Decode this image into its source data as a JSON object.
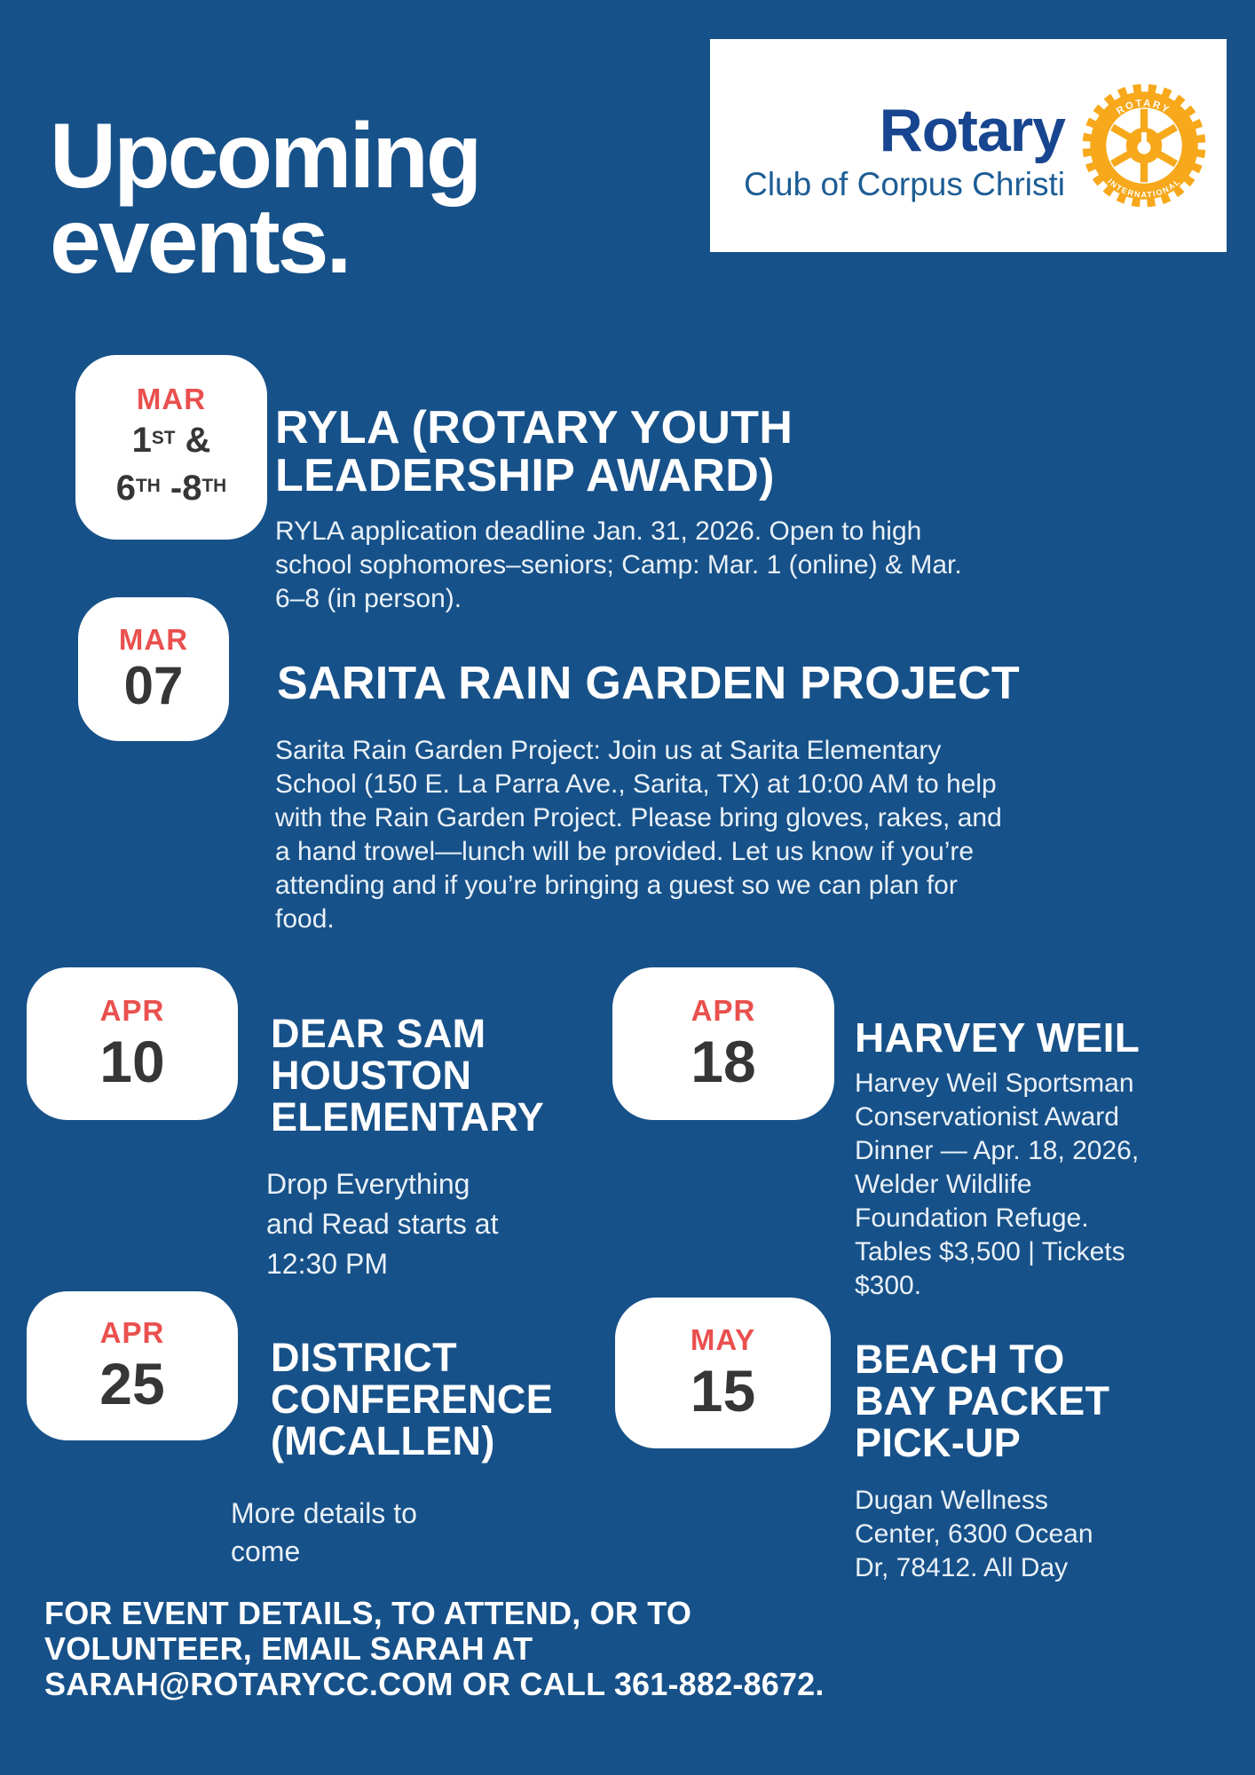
{
  "colors": {
    "background": "#175189",
    "accent_red": "#E9504E",
    "date_text": "#363636",
    "heading_white": "#FFFFFF",
    "body_text": "#E9F1F8",
    "gold": "#F7A81B",
    "brand_blue": "#17458F",
    "subtitle_blue": "#1C5C94",
    "card_bg": "#FFFFFF"
  },
  "page": {
    "title_lines": [
      "Upcoming",
      "events."
    ]
  },
  "logo": {
    "brand": "Rotary",
    "subtitle": "Club of Corpus Christi",
    "wheel_text_top": "ROTARY",
    "wheel_text_bottom": "INTERNATIONAL"
  },
  "events": [
    {
      "month": "MAR",
      "day_lines": [
        "1^ST^ &",
        "6^TH^ -8^TH^"
      ],
      "title_lines": [
        "RYLA (ROTARY YOUTH",
        "LEADERSHIP AWARD)"
      ],
      "description": "RYLA application deadline Jan. 31, 2026. Open to high school sophomores–seniors;  Camp: Mar. 1 (online) & Mar. 6–8 (in person)."
    },
    {
      "month": "MAR",
      "day": "07",
      "title_lines": [
        "SARITA RAIN GARDEN PROJECT"
      ],
      "description": "Sarita Rain Garden Project: Join us at Sarita Elementary School (150 E. La Parra Ave., Sarita, TX) at 10:00 AM to help with the Rain Garden Project. Please bring gloves, rakes, and a hand trowel—lunch will be provided. Let us know if you’re attending and if you’re bringing a guest so we can plan for food."
    },
    {
      "month": "APR",
      "day": "10",
      "title_lines": [
        "DEAR SAM",
        "HOUSTON",
        "ELEMENTARY"
      ],
      "description": "Drop Everything and Read starts at 12:30 PM"
    },
    {
      "month": "APR",
      "day": "18",
      "title_lines": [
        "HARVEY WEIL"
      ],
      "description": "Harvey Weil Sportsman Conservationist Award Dinner — Apr. 18, 2026, Welder Wildlife Foundation Refuge. Tables $3,500 | Tickets $300."
    },
    {
      "month": "APR",
      "day": "25",
      "title_lines": [
        "DISTRICT",
        "CONFERENCE",
        "(MCALLEN)"
      ],
      "description": "More details to come"
    },
    {
      "month": "MAY",
      "day": "15",
      "title_lines": [
        "BEACH TO",
        "BAY PACKET",
        "PICK-UP"
      ],
      "description": "Dugan Wellness Center, 6300 Ocean Dr, 78412. All Day"
    }
  ],
  "footer": {
    "lines": [
      "FOR EVENT DETAILS, TO ATTEND, OR TO",
      "VOLUNTEER, EMAIL SARAH AT",
      "SARAH@ROTARYCC.COM OR CALL 361-882-8672."
    ]
  }
}
